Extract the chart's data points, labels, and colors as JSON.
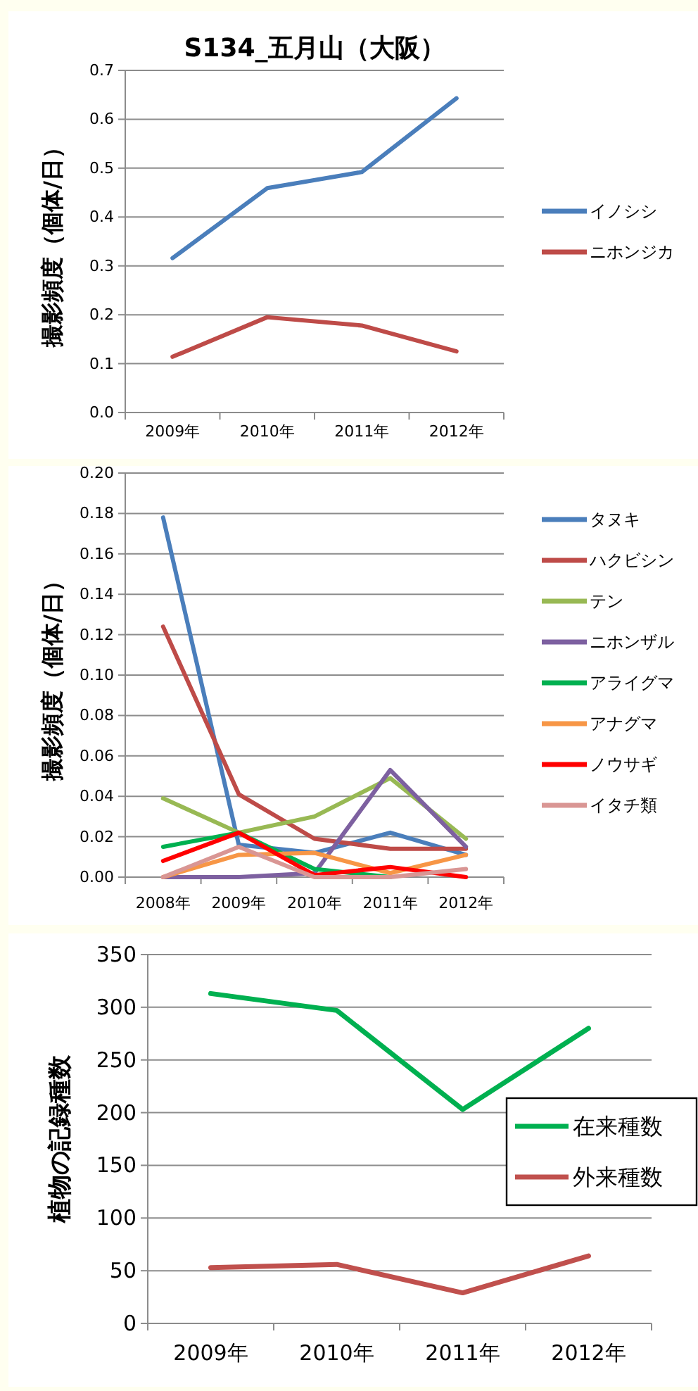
{
  "chart_data": [
    {
      "type": "line",
      "title": "S134_五月山（大阪）",
      "ylabel": "撮影頻度（個体/日）",
      "categories": [
        "2009年",
        "2010年",
        "2011年",
        "2012年"
      ],
      "series": [
        {
          "name": "イノシシ",
          "color": "#4a7ebb",
          "values": [
            0.316,
            0.459,
            0.492,
            0.643
          ]
        },
        {
          "name": "ニホンジカ",
          "color": "#be4b48",
          "values": [
            0.114,
            0.195,
            0.178,
            0.125
          ]
        }
      ],
      "ylim": [
        0,
        0.7
      ],
      "yticks": [
        {
          "value": 0,
          "label": "0.0"
        },
        0.1,
        0.2,
        0.3,
        0.4,
        0.5,
        0.6,
        0.7
      ],
      "grid": "y",
      "legend": "right",
      "marker": "none"
    },
    {
      "type": "line",
      "ylabel": "撮影頻度（個体/日）",
      "categories": [
        "2008年",
        "2009年",
        "2010年",
        "2011年",
        "2012年"
      ],
      "series": [
        {
          "name": "タヌキ",
          "color": "#4a7ebb",
          "values": [
            0.178,
            0.016,
            0.012,
            0.022,
            0.011
          ]
        },
        {
          "name": "ハクビシン",
          "color": "#be4b48",
          "values": [
            0.124,
            0.041,
            0.019,
            0.014,
            0.014
          ]
        },
        {
          "name": "テン",
          "color": "#98b954",
          "values": [
            0.039,
            0.022,
            0.03,
            0.049,
            0.019
          ]
        },
        {
          "name": "ニホンザル",
          "color": "#7d60a0",
          "values": [
            0,
            0,
            0.002,
            0.053,
            0.015
          ]
        },
        {
          "name": "アライグマ",
          "color": "#00b050",
          "values": [
            0.015,
            0.022,
            0.004,
            0,
            null
          ]
        },
        {
          "name": "アナグマ",
          "color": "#f79646",
          "values": [
            0,
            0.011,
            0.012,
            0.002,
            0.011
          ]
        },
        {
          "name": "ノウサギ",
          "color": "#ff0000",
          "values": [
            0.008,
            0.022,
            0.001,
            0.005,
            0
          ]
        },
        {
          "name": "イタチ類",
          "color": "#d99694",
          "values": [
            0,
            0.015,
            0,
            0,
            0.004
          ]
        }
      ],
      "ylim": [
        0,
        0.2
      ],
      "yticks": [
        {
          "value": 0,
          "label": "0.00"
        },
        {
          "value": 0.02,
          "label": "0.02"
        },
        {
          "value": 0.04,
          "label": "0.04"
        },
        {
          "value": 0.06,
          "label": "0.06"
        },
        {
          "value": 0.08,
          "label": "0.08"
        },
        {
          "value": 0.1,
          "label": "0.10"
        },
        {
          "value": 0.12,
          "label": "0.12"
        },
        {
          "value": 0.14,
          "label": "0.14"
        },
        {
          "value": 0.16,
          "label": "0.16"
        },
        {
          "value": 0.18,
          "label": "0.18"
        },
        {
          "value": 0.2,
          "label": "0.20"
        }
      ],
      "grid": "y",
      "legend": "top right",
      "marker": "none"
    },
    {
      "type": "line",
      "ylabel": "植物の記録種数",
      "categories": [
        "2009年",
        "2010年",
        "2011年",
        "2012年"
      ],
      "series": [
        {
          "name": "在来種数",
          "color": "#00b050",
          "values": [
            313,
            297,
            203,
            280
          ]
        },
        {
          "name": "外来種数",
          "color": "#c0504d",
          "values": [
            53,
            56,
            29,
            64
          ]
        }
      ],
      "ylim": [
        0,
        350
      ],
      "yticks": [
        0,
        50,
        100,
        150,
        200,
        250,
        300,
        350
      ],
      "grid": "y",
      "legend": "right",
      "marker": "none"
    }
  ]
}
